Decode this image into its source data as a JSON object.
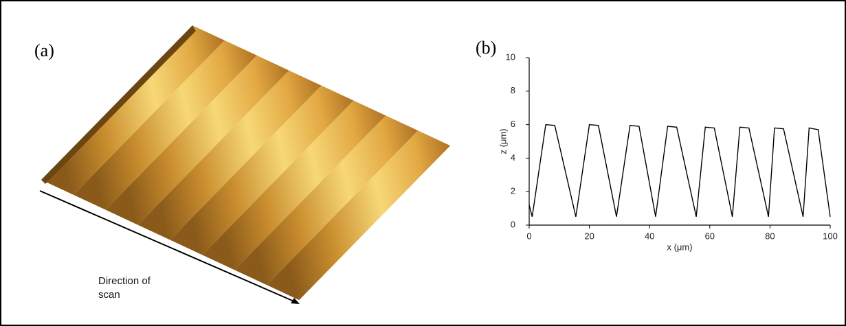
{
  "panel_a": {
    "label": "(a)",
    "annotation": "Direction of scan"
  },
  "chart_data": {
    "type": "line",
    "panel_label": "(b)",
    "xlabel": "x (μm)",
    "ylabel": "z (μm)",
    "x": [
      0,
      1,
      5.5,
      8.5,
      15.5,
      20,
      23,
      29,
      33.5,
      36.5,
      42,
      46,
      49,
      55.5,
      58.5,
      61.5,
      67.5,
      70,
      73,
      79.5,
      81.5,
      84.5,
      91,
      93,
      96,
      100
    ],
    "values": [
      1.2,
      0.5,
      6.0,
      5.95,
      0.5,
      6.0,
      5.95,
      0.5,
      5.95,
      5.9,
      0.5,
      5.9,
      5.85,
      0.5,
      5.85,
      5.8,
      0.5,
      5.85,
      5.8,
      0.5,
      5.8,
      5.75,
      0.5,
      5.8,
      5.7,
      0.5
    ],
    "color": "#000000",
    "xlim": [
      0,
      100
    ],
    "xticks": [
      0,
      20,
      40,
      60,
      80,
      100
    ],
    "ylim": [
      0,
      10
    ],
    "yticks": [
      0,
      2,
      4,
      6,
      8,
      10
    ]
  }
}
